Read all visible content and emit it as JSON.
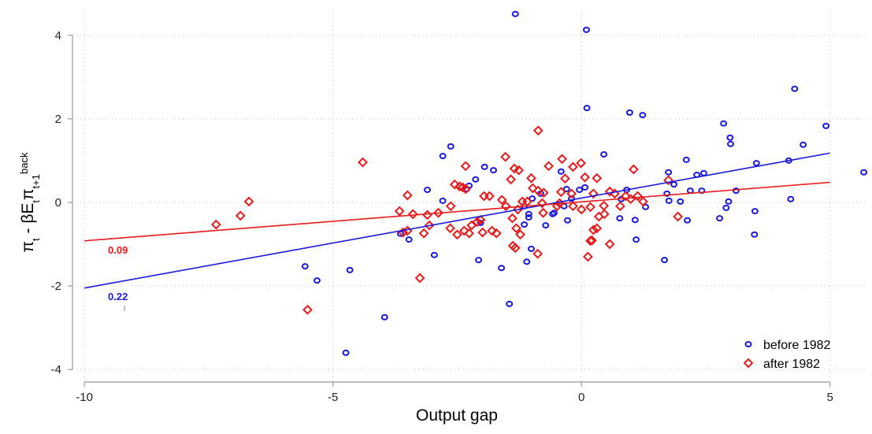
{
  "chart_data": {
    "type": "scatter",
    "x_label": "Output gap",
    "y_label_parts": [
      "π",
      "t",
      " - βE",
      "t",
      "π",
      "t+1",
      "back"
    ],
    "xlim": [
      -10.24,
      5.75
    ],
    "ylim": [
      -4.3,
      4.6
    ],
    "xticks": [
      -10,
      -5,
      0,
      5
    ],
    "yticks": [
      -4,
      -2,
      0,
      2,
      4
    ],
    "grid": true,
    "legend": "bottom-right",
    "annotations": [
      "0.09",
      "0.22"
    ],
    "series": [
      {
        "name": "before 1982",
        "color": "#1a1adc",
        "marker": "circle",
        "fit": {
          "x": [
            -10,
            5
          ],
          "y": [
            -2.05,
            1.18
          ]
        },
        "x": [
          -1.33,
          0.1,
          4.29,
          0.11,
          0.97,
          1.23,
          4.92,
          2.86,
          2.99,
          3.0,
          4.46,
          -2.63,
          0.45,
          -2.79,
          2.11,
          4.17,
          3.52,
          -1.95,
          -1.77,
          5.68,
          1.75,
          2.46,
          2.32,
          -0.41,
          -2.13,
          1.86,
          -3.1,
          0.07,
          0.91,
          2.19,
          2.42,
          3.11,
          -0.3,
          -0.04,
          -2.26,
          -2.31,
          -0.82,
          1.72,
          -0.99,
          -0.2,
          0.8,
          -2.79,
          1.76,
          1.99,
          2.96,
          4.21,
          -1.15,
          -0.35,
          1.29,
          2.91,
          3.49,
          -1.06,
          -1.06,
          -0.55,
          -0.58,
          -0.28,
          1.08,
          0.77,
          2.13,
          2.78,
          -2.03,
          -1.15,
          -0.72,
          3.48,
          -3.64,
          -3.47,
          1.1,
          -1.01,
          -2.96,
          -2.07,
          1.67,
          -1.1,
          -1.61,
          -5.56,
          -4.66,
          -5.32,
          -1.45,
          -3.96,
          -4.74
        ],
        "values": [
          4.51,
          4.13,
          2.72,
          2.26,
          2.15,
          2.09,
          1.83,
          1.89,
          1.55,
          1.4,
          1.38,
          1.34,
          1.15,
          1.11,
          1.02,
          1.0,
          0.94,
          0.85,
          0.77,
          0.72,
          0.72,
          0.7,
          0.66,
          0.74,
          0.55,
          0.43,
          0.3,
          0.36,
          0.3,
          0.28,
          0.28,
          0.28,
          0.32,
          0.3,
          0.4,
          0.32,
          0.21,
          0.21,
          0.09,
          0.09,
          0.08,
          0.04,
          0.04,
          0.02,
          0.02,
          0.08,
          -0.09,
          -0.09,
          -0.11,
          -0.13,
          -0.21,
          -0.28,
          -0.36,
          -0.25,
          -0.28,
          -0.43,
          -0.42,
          -0.38,
          -0.43,
          -0.38,
          -0.49,
          -0.53,
          -0.55,
          -0.77,
          -0.75,
          -0.89,
          -0.89,
          -1.11,
          -1.26,
          -1.38,
          -1.38,
          -1.42,
          -1.57,
          -1.53,
          -1.62,
          -1.87,
          -2.43,
          -2.75,
          -3.6
        ]
      },
      {
        "name": "after 1982",
        "color": "#e81a1a",
        "marker": "diamond",
        "fit": {
          "x": [
            -10,
            5
          ],
          "y": [
            -0.92,
            0.48
          ]
        },
        "x": [
          -0.87,
          -4.4,
          -6.69,
          -6.86,
          -7.35,
          -5.51,
          -3.25,
          -0.88,
          -1.38,
          -1.33,
          0.13,
          0.18,
          0.21,
          0.57,
          0.24,
          -1.53,
          -1.35,
          -1.26,
          -0.39,
          -0.01,
          1.05,
          -2.33,
          -0.17,
          -0.66,
          -1.42,
          -1.01,
          0.07,
          -0.33,
          0.31,
          1.75,
          -2.55,
          -2.45,
          -2.39,
          -2.33,
          -3.5,
          -1.96,
          -1.85,
          -0.98,
          -0.87,
          -0.76,
          -0.41,
          -0.2,
          0.24,
          0.57,
          0.67,
          0.89,
          1.13,
          0.99,
          1.24,
          -1.6,
          -1.19,
          -1.09,
          -0.79,
          -0.44,
          -0.17,
          0.18,
          0.45,
          0.78,
          -1.52,
          -1.28,
          -0.77,
          0.0,
          -3.66,
          -2.63,
          -2.88,
          -3.1,
          -3.39,
          -1.39,
          -2.03,
          -2.1,
          -2.21,
          0.35,
          0.46,
          1.94,
          -2.64,
          -2.36,
          -1.99,
          -1.8,
          -1.71,
          -1.31,
          -1.23,
          -3.5,
          -3.17,
          -3.59,
          -3.06,
          -2.5,
          -2.26,
          0.31,
          -0.49
        ],
        "values": [
          1.72,
          0.96,
          0.02,
          -0.32,
          -0.53,
          -2.57,
          -1.81,
          -1.23,
          -1.04,
          -1.09,
          -1.3,
          -0.92,
          -0.91,
          -1.0,
          -0.66,
          1.09,
          0.81,
          0.77,
          1.04,
          0.94,
          0.79,
          0.87,
          0.85,
          0.87,
          0.55,
          0.58,
          0.6,
          0.57,
          0.58,
          0.53,
          0.43,
          0.38,
          0.36,
          0.32,
          0.17,
          0.15,
          0.15,
          0.34,
          0.28,
          0.23,
          0.25,
          0.21,
          0.21,
          0.26,
          0.21,
          0.15,
          0.15,
          0.08,
          0.02,
          0.06,
          0.02,
          0.02,
          -0.02,
          -0.02,
          -0.09,
          -0.11,
          -0.08,
          -0.09,
          -0.09,
          -0.17,
          -0.25,
          -0.17,
          -0.21,
          -0.09,
          -0.25,
          -0.3,
          -0.28,
          -0.38,
          -0.42,
          -0.47,
          -0.55,
          -0.34,
          -0.28,
          -0.34,
          -0.62,
          -0.68,
          -0.72,
          -0.68,
          -0.74,
          -0.62,
          -0.77,
          -0.68,
          -0.74,
          -0.72,
          -0.55,
          -0.77,
          -0.74,
          -0.62,
          -0.09
        ]
      }
    ]
  }
}
